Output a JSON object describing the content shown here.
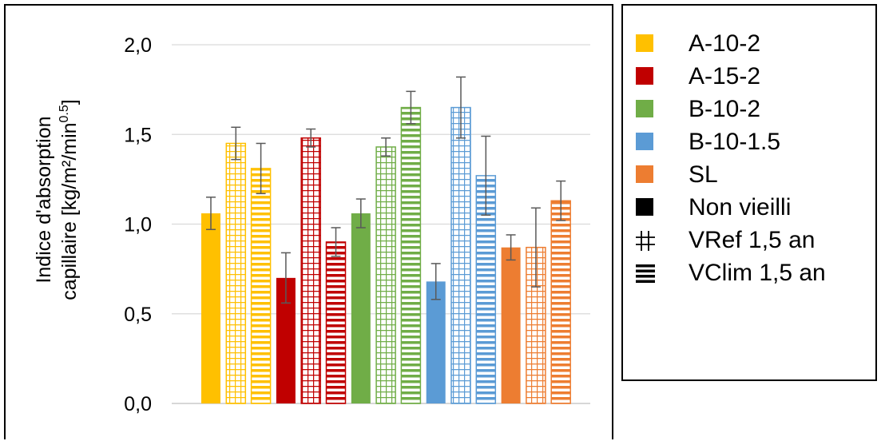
{
  "chart_data": {
    "type": "bar",
    "ylabel_line1": "Indice d'absorption",
    "ylabel_line2_prefix": "capillaire [kg/m²/min",
    "ylabel_line2_sup": "0.5",
    "ylabel_line2_suffix": "]",
    "ylim": [
      0,
      2
    ],
    "yticks": [
      "0,0",
      "0,5",
      "1,0",
      "1,5",
      "2,0"
    ],
    "ytick_values": [
      0,
      0.5,
      1.0,
      1.5,
      2.0
    ],
    "grid": true,
    "legend_position": "right",
    "materials": [
      {
        "name": "A-10-2",
        "color": "#FFC000"
      },
      {
        "name": "A-15-2",
        "color": "#C00000"
      },
      {
        "name": "B-10-2",
        "color": "#70AD47"
      },
      {
        "name": "B-10-1.5",
        "color": "#5B9BD5"
      },
      {
        "name": "SL",
        "color": "#ED7D31"
      }
    ],
    "conditions": [
      {
        "name": "Non vieilli",
        "pattern": "solid"
      },
      {
        "name": "VRef 1,5 an",
        "pattern": "grid"
      },
      {
        "name": "VClim 1,5 an",
        "pattern": "hlines"
      }
    ],
    "series": [
      {
        "material": "A-10-2",
        "values": [
          1.06,
          1.45,
          1.31
        ],
        "errors": [
          0.09,
          0.09,
          0.14
        ]
      },
      {
        "material": "A-15-2",
        "values": [
          0.7,
          1.48,
          0.9
        ],
        "errors": [
          0.14,
          0.05,
          0.08
        ]
      },
      {
        "material": "B-10-2",
        "values": [
          1.06,
          1.43,
          1.65
        ],
        "errors": [
          0.08,
          0.05,
          0.09
        ]
      },
      {
        "material": "B-10-1.5",
        "values": [
          0.68,
          1.65,
          1.27
        ],
        "errors": [
          0.1,
          0.17,
          0.22
        ]
      },
      {
        "material": "SL",
        "values": [
          0.87,
          0.87,
          1.13
        ],
        "errors": [
          0.07,
          0.22,
          0.11
        ]
      }
    ]
  }
}
